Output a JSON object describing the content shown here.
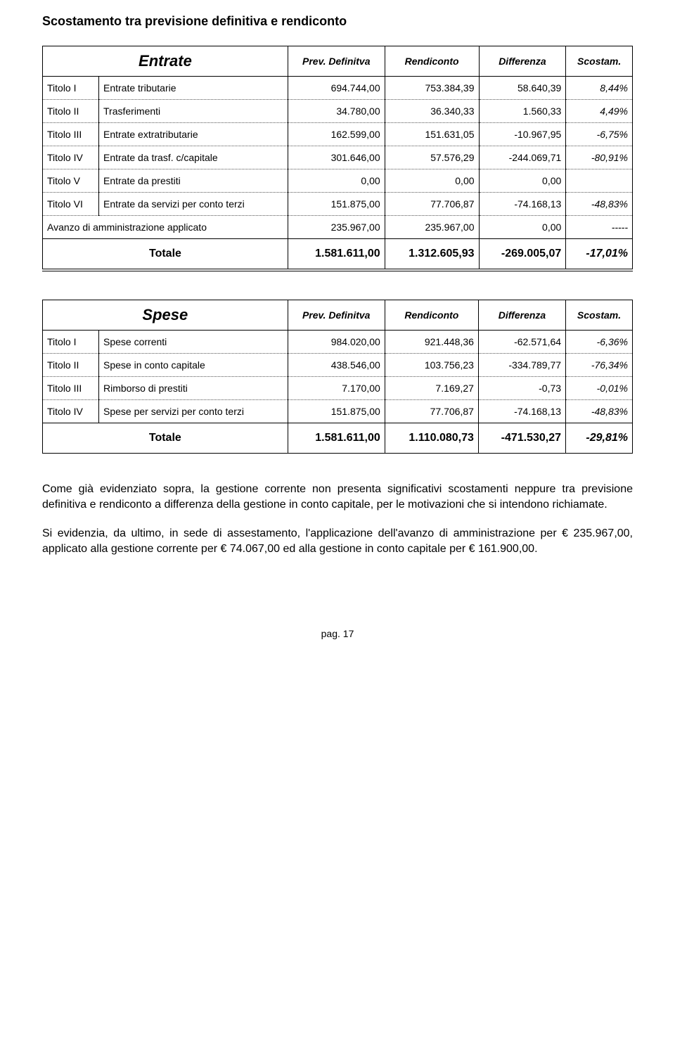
{
  "page_title": "Scostamento tra previsione definitiva e rendiconto",
  "entrate": {
    "heading": "Entrate",
    "cols": [
      "Prev. Definitva",
      "Rendiconto",
      "Differenza",
      "Scostam."
    ],
    "rows": [
      {
        "lbl": "Titolo I",
        "desc": "Entrate tributarie",
        "prev": "694.744,00",
        "rend": "753.384,39",
        "diff": "58.640,39",
        "scost": "8,44%"
      },
      {
        "lbl": "Titolo II",
        "desc": "Trasferimenti",
        "prev": "34.780,00",
        "rend": "36.340,33",
        "diff": "1.560,33",
        "scost": "4,49%"
      },
      {
        "lbl": "Titolo III",
        "desc": "Entrate extratributarie",
        "prev": "162.599,00",
        "rend": "151.631,05",
        "diff": "-10.967,95",
        "scost": "-6,75%"
      },
      {
        "lbl": "Titolo IV",
        "desc": "Entrate da trasf. c/capitale",
        "prev": "301.646,00",
        "rend": "57.576,29",
        "diff": "-244.069,71",
        "scost": "-80,91%"
      },
      {
        "lbl": "Titolo V",
        "desc": "Entrate da prestiti",
        "prev": "0,00",
        "rend": "0,00",
        "diff": "0,00",
        "scost": ""
      },
      {
        "lbl": "Titolo VI",
        "desc": "Entrate da servizi per conto terzi",
        "prev": "151.875,00",
        "rend": "77.706,87",
        "diff": "-74.168,13",
        "scost": "-48,83%"
      },
      {
        "lbl": "",
        "desc": "Avanzo di amministrazione applicato",
        "prev": "235.967,00",
        "rend": "235.967,00",
        "diff": "0,00",
        "scost": "-----",
        "merge_label": true,
        "solid": true
      }
    ],
    "total": {
      "label": "Totale",
      "prev": "1.581.611,00",
      "rend": "1.312.605,93",
      "diff": "-269.005,07",
      "scost": "-17,01%"
    }
  },
  "spese": {
    "heading": "Spese",
    "cols": [
      "Prev. Definitva",
      "Rendiconto",
      "Differenza",
      "Scostam."
    ],
    "rows": [
      {
        "lbl": "Titolo I",
        "desc": "Spese correnti",
        "prev": "984.020,00",
        "rend": "921.448,36",
        "diff": "-62.571,64",
        "scost": "-6,36%"
      },
      {
        "lbl": "Titolo II",
        "desc": "Spese in conto capitale",
        "prev": "438.546,00",
        "rend": "103.756,23",
        "diff": "-334.789,77",
        "scost": "-76,34%"
      },
      {
        "lbl": "Titolo III",
        "desc": "Rimborso di prestiti",
        "prev": "7.170,00",
        "rend": "7.169,27",
        "diff": "-0,73",
        "scost": "-0,01%"
      },
      {
        "lbl": "Titolo IV",
        "desc": "Spese per servizi per conto terzi",
        "prev": "151.875,00",
        "rend": "77.706,87",
        "diff": "-74.168,13",
        "scost": "-48,83%",
        "solid": true
      }
    ],
    "total": {
      "label": "Totale",
      "prev": "1.581.611,00",
      "rend": "1.110.080,73",
      "diff": "-471.530,27",
      "scost": "-29,81%"
    }
  },
  "paragraphs": {
    "p1": "Come già evidenziato sopra, la gestione corrente non presenta significativi scostamenti neppure tra previsione definitiva e rendiconto a differenza della gestione in conto capitale, per le motivazioni che si intendono richiamate.",
    "p2": "Si evidenzia, da ultimo, in sede di assestamento, l'applicazione dell'avanzo di amministrazione per € 235.967,00, applicato alla gestione corrente per € 74.067,00 ed alla gestione in conto capitale per € 161.900,00."
  },
  "footer": "pag. 17",
  "style": {
    "title_fontsize": 18,
    "heading_fontsize": 22,
    "body_fontsize": 16,
    "cell_fontsize": 14,
    "border_color": "#000000",
    "dotted_color": "#555555",
    "background": "#ffffff",
    "text_color": "#000000"
  }
}
